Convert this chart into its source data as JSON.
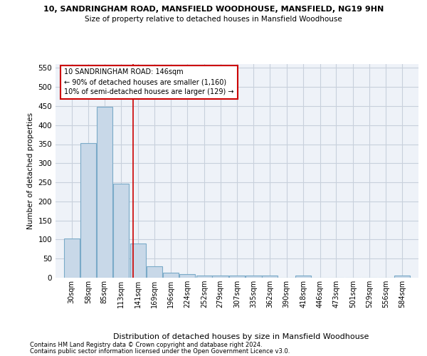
{
  "title1": "10, SANDRINGHAM ROAD, MANSFIELD WOODHOUSE, MANSFIELD, NG19 9HN",
  "title2": "Size of property relative to detached houses in Mansfield Woodhouse",
  "xlabel": "Distribution of detached houses by size in Mansfield Woodhouse",
  "ylabel": "Number of detached properties",
  "footnote1": "Contains HM Land Registry data © Crown copyright and database right 2024.",
  "footnote2": "Contains public sector information licensed under the Open Government Licence v3.0.",
  "bin_edges": [
    30,
    58,
    85,
    113,
    141,
    169,
    196,
    224,
    252,
    279,
    307,
    335,
    362,
    390,
    418,
    446,
    473,
    501,
    529,
    556,
    584
  ],
  "bar_heights": [
    103,
    353,
    448,
    246,
    89,
    30,
    14,
    9,
    5,
    6,
    5,
    5,
    5,
    0,
    5,
    0,
    0,
    0,
    0,
    0,
    5
  ],
  "bar_color": "#c8d8e8",
  "bar_edge_color": "#7aaac8",
  "grid_color": "#c8d0dc",
  "bg_color": "#eef2f8",
  "red_line_x": 146,
  "annotation_line1": "10 SANDRINGHAM ROAD: 146sqm",
  "annotation_line2": "← 90% of detached houses are smaller (1,160)",
  "annotation_line3": "10% of semi-detached houses are larger (129) →",
  "annotation_box_color": "#ffffff",
  "annotation_border_color": "#cc0000",
  "ylim": [
    0,
    560
  ],
  "yticks": [
    0,
    50,
    100,
    150,
    200,
    250,
    300,
    350,
    400,
    450,
    500,
    550
  ],
  "tick_labels": [
    "30sqm",
    "58sqm",
    "85sqm",
    "113sqm",
    "141sqm",
    "169sqm",
    "196sqm",
    "224sqm",
    "252sqm",
    "279sqm",
    "307sqm",
    "335sqm",
    "362sqm",
    "390sqm",
    "418sqm",
    "446sqm",
    "473sqm",
    "501sqm",
    "529sqm",
    "556sqm",
    "584sqm"
  ]
}
